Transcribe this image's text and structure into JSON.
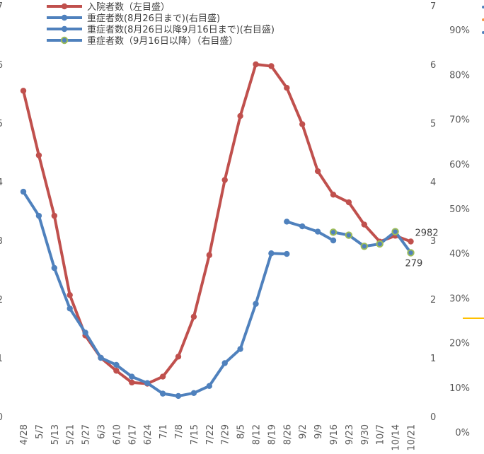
{
  "chart_data": {
    "type": "line",
    "categories": [
      "4/28",
      "5/7",
      "5/13",
      "5/21",
      "5/27",
      "6/3",
      "6/10",
      "6/17",
      "6/24",
      "7/1",
      "7/8",
      "7/15",
      "7/22",
      "7/29",
      "8/5",
      "8/12",
      "8/19",
      "8/26",
      "9/2",
      "9/9",
      "9/16",
      "9/23",
      "9/30",
      "10/7",
      "10/14",
      "10/21"
    ],
    "left_axis": {
      "ticks": [
        "0",
        "1",
        "2",
        "3",
        "4",
        "5",
        "6",
        "7"
      ],
      "ylim": [
        0,
        7
      ]
    },
    "right_axis": {
      "ticks": [
        "0",
        "1",
        "2",
        "3",
        "4",
        "5",
        "6",
        "7"
      ],
      "ylim": [
        0,
        7
      ]
    },
    "pct_axis": {
      "ticks": [
        "0%",
        "10%",
        "20%",
        "30%",
        "40%",
        "50%",
        "60%",
        "70%",
        "80%",
        "90%"
      ]
    },
    "series": [
      {
        "name": "入院者数（左目盛）",
        "axis": "left",
        "color": "#c0504d",
        "marker": "#c0504d",
        "values": [
          5.55,
          4.45,
          3.42,
          2.07,
          1.38,
          1.0,
          0.78,
          0.58,
          0.56,
          0.68,
          1.02,
          1.7,
          2.75,
          4.03,
          5.12,
          6.0,
          5.97,
          5.6,
          4.98,
          4.18,
          3.78,
          3.65,
          3.27,
          2.98,
          3.08,
          2.982
        ]
      },
      {
        "name": "重症者数(8月26日まで)(右目盛)",
        "axis": "right",
        "color": "#4f81bd",
        "marker": "#4f81bd",
        "values": [
          3.83,
          3.42,
          2.53,
          1.84,
          1.43,
          1.0,
          0.88,
          0.68,
          0.57,
          0.39,
          0.35,
          0.4,
          0.52,
          0.91,
          1.15,
          1.92,
          2.78,
          2.77,
          null,
          null,
          null,
          null,
          null,
          null,
          null,
          null
        ]
      },
      {
        "name": "重症者数(8月26日以降9月16日まで)(右目盛)",
        "axis": "right",
        "color": "#4f81bd",
        "marker": "#4f81bd",
        "values": [
          null,
          null,
          null,
          null,
          null,
          null,
          null,
          null,
          null,
          null,
          null,
          null,
          null,
          null,
          null,
          null,
          null,
          3.32,
          3.24,
          3.15,
          3.0,
          null,
          null,
          null,
          null,
          null
        ]
      },
      {
        "name": "重症者数（9月16日以降）（右目盛）",
        "axis": "right",
        "color": "#4f81bd",
        "marker": "#9bbb59",
        "values": [
          null,
          null,
          null,
          null,
          null,
          null,
          null,
          null,
          null,
          null,
          null,
          null,
          null,
          null,
          null,
          null,
          null,
          null,
          null,
          null,
          3.14,
          3.09,
          2.9,
          2.94,
          3.15,
          2.79
        ]
      }
    ],
    "data_labels": [
      {
        "series": 0,
        "index": 25,
        "text": "2982"
      },
      {
        "series": 3,
        "index": 25,
        "text": "279"
      }
    ]
  }
}
